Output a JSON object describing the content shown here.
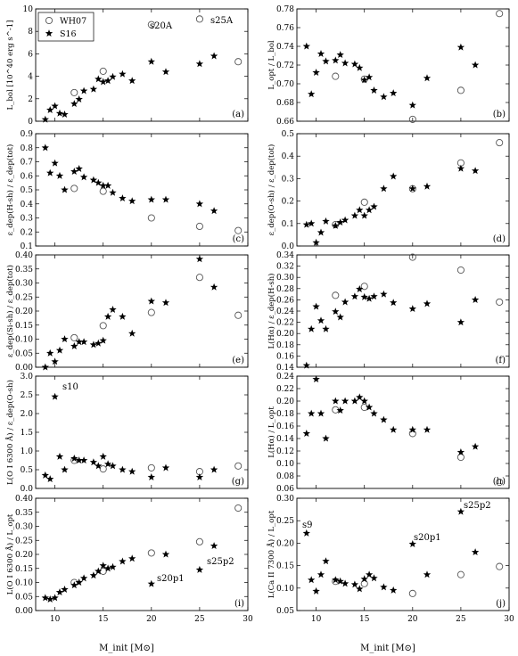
{
  "xaxis": {
    "range": [
      8,
      30
    ],
    "ticks": [
      10,
      15,
      20,
      25,
      30
    ],
    "label": "M_init [M⊙]"
  },
  "legend": {
    "entries": [
      {
        "name": "WH07",
        "marker": "circle"
      },
      {
        "name": "S16",
        "marker": "star"
      }
    ],
    "placement": "top-left of panel (a)"
  },
  "chart_data": [
    {
      "type": "scatter",
      "panel": "(a)",
      "ylabel": "L_bol [10^40 erg s^-1]",
      "ylim": [
        0,
        10
      ],
      "yticks": [
        0,
        2,
        4,
        6,
        8,
        10
      ],
      "series": [
        {
          "name": "WH07",
          "x": [
            12,
            15,
            20,
            25,
            29
          ],
          "y": [
            2.55,
            4.45,
            8.6,
            9.1,
            5.3
          ]
        },
        {
          "name": "S16",
          "x": [
            9,
            9.5,
            10,
            10.5,
            11,
            12,
            12.5,
            13,
            14,
            14.5,
            15,
            15.5,
            16,
            17,
            18,
            20,
            21.5,
            25,
            26.5
          ],
          "y": [
            0.15,
            1.0,
            1.35,
            0.7,
            0.6,
            1.55,
            1.95,
            2.7,
            2.85,
            3.75,
            3.5,
            3.6,
            3.95,
            4.2,
            3.6,
            5.3,
            4.4,
            5.1,
            5.8
          ]
        }
      ],
      "annotations": [
        {
          "text": "s20A"
        },
        {
          "text": "s25A"
        }
      ]
    },
    {
      "type": "scatter",
      "panel": "(b)",
      "ylabel": "L_opt / L_bol",
      "ylim": [
        0.66,
        0.78
      ],
      "yticks": [
        0.66,
        0.68,
        0.7,
        0.72,
        0.74,
        0.76,
        0.78
      ],
      "series": [
        {
          "name": "WH07",
          "x": [
            12,
            15,
            20,
            25,
            29
          ],
          "y": [
            0.708,
            0.705,
            0.662,
            0.693,
            0.775
          ]
        },
        {
          "name": "S16",
          "x": [
            9,
            9.5,
            10,
            10.5,
            11,
            12,
            12.5,
            13,
            14,
            14.5,
            15,
            15.5,
            16,
            17,
            18,
            20,
            21.5,
            25,
            26.5
          ],
          "y": [
            0.74,
            0.689,
            0.712,
            0.732,
            0.724,
            0.725,
            0.731,
            0.722,
            0.721,
            0.717,
            0.704,
            0.707,
            0.693,
            0.686,
            0.69,
            0.677,
            0.706,
            0.739,
            0.72
          ]
        }
      ]
    },
    {
      "type": "scatter",
      "panel": "(c)",
      "ylabel": "ε_dep(H-sh) / ε_dep(tot)",
      "ylim": [
        0.1,
        0.9
      ],
      "yticks": [
        0.1,
        0.2,
        0.3,
        0.4,
        0.5,
        0.6,
        0.7,
        0.8,
        0.9
      ],
      "series": [
        {
          "name": "WH07",
          "x": [
            12,
            15,
            20,
            25,
            29
          ],
          "y": [
            0.51,
            0.49,
            0.3,
            0.24,
            0.21
          ]
        },
        {
          "name": "S16",
          "x": [
            9,
            9.5,
            10,
            10.5,
            11,
            12,
            12.5,
            13,
            14,
            14.5,
            15,
            15.5,
            16,
            17,
            18,
            20,
            21.5,
            25,
            26.5
          ],
          "y": [
            0.8,
            0.62,
            0.69,
            0.6,
            0.5,
            0.63,
            0.65,
            0.59,
            0.57,
            0.55,
            0.53,
            0.53,
            0.48,
            0.44,
            0.42,
            0.43,
            0.43,
            0.4,
            0.35
          ]
        }
      ]
    },
    {
      "type": "scatter",
      "panel": "(d)",
      "ylabel": "ε_dep(O-sh) / ε_dep(tot)",
      "ylim": [
        0.0,
        0.5
      ],
      "yticks": [
        0.0,
        0.1,
        0.2,
        0.3,
        0.4,
        0.5
      ],
      "series": [
        {
          "name": "WH07",
          "x": [
            12,
            15,
            20,
            25,
            29
          ],
          "y": [
            0.095,
            0.195,
            0.255,
            0.37,
            0.46
          ]
        },
        {
          "name": "S16",
          "x": [
            9,
            9.5,
            10,
            10.5,
            11,
            12,
            12.5,
            13,
            14,
            14.5,
            15,
            15.5,
            16,
            17,
            18,
            20,
            21.5,
            25,
            26.5
          ],
          "y": [
            0.095,
            0.1,
            0.015,
            0.06,
            0.11,
            0.09,
            0.105,
            0.115,
            0.135,
            0.16,
            0.135,
            0.16,
            0.175,
            0.255,
            0.31,
            0.255,
            0.265,
            0.345,
            0.335
          ]
        }
      ]
    },
    {
      "type": "scatter",
      "panel": "(e)",
      "ylabel": "ε_dep(Si-sh) / ε_dep(tot)",
      "ylim": [
        0.0,
        0.4
      ],
      "yticks": [
        0.0,
        0.05,
        0.1,
        0.15,
        0.2,
        0.25,
        0.3,
        0.35,
        0.4
      ],
      "series": [
        {
          "name": "WH07",
          "x": [
            12,
            15,
            20,
            25,
            29
          ],
          "y": [
            0.105,
            0.148,
            0.195,
            0.32,
            0.185
          ]
        },
        {
          "name": "S16",
          "x": [
            9,
            9.5,
            10,
            10.5,
            11,
            12,
            12.5,
            13,
            14,
            14.5,
            15,
            15.5,
            16,
            17,
            18,
            20,
            21.5,
            25,
            26.5
          ],
          "y": [
            0.0,
            0.05,
            0.02,
            0.06,
            0.1,
            0.075,
            0.09,
            0.09,
            0.08,
            0.085,
            0.095,
            0.18,
            0.205,
            0.18,
            0.12,
            0.235,
            0.23,
            0.385,
            0.285
          ]
        }
      ]
    },
    {
      "type": "scatter",
      "panel": "(f)",
      "ylabel": "L(Hα) / ε_dep(H-sh)",
      "ylim": [
        0.14,
        0.34
      ],
      "yticks": [
        0.14,
        0.16,
        0.18,
        0.2,
        0.22,
        0.24,
        0.26,
        0.28,
        0.3,
        0.32,
        0.34
      ],
      "series": [
        {
          "name": "WH07",
          "x": [
            12,
            15,
            20,
            25,
            29
          ],
          "y": [
            0.268,
            0.284,
            0.336,
            0.313,
            0.256
          ]
        },
        {
          "name": "S16",
          "x": [
            9,
            9.5,
            10,
            10.5,
            11,
            12,
            12.5,
            13,
            14,
            14.5,
            15,
            15.5,
            16,
            17,
            18,
            20,
            21.5,
            25,
            26.5
          ],
          "y": [
            0.143,
            0.208,
            0.248,
            0.223,
            0.208,
            0.239,
            0.229,
            0.256,
            0.266,
            0.279,
            0.265,
            0.262,
            0.266,
            0.27,
            0.255,
            0.244,
            0.253,
            0.22,
            0.26
          ]
        }
      ]
    },
    {
      "type": "scatter",
      "panel": "(g)",
      "ylabel": "L(O I 6300 Å) / ε_dep(O-sh)",
      "ylim": [
        0.0,
        3.0
      ],
      "yticks": [
        0.0,
        0.5,
        1.0,
        1.5,
        2.0,
        2.5,
        3.0
      ],
      "series": [
        {
          "name": "WH07",
          "x": [
            12,
            15,
            20,
            25,
            29
          ],
          "y": [
            0.75,
            0.52,
            0.55,
            0.45,
            0.6
          ]
        },
        {
          "name": "S16",
          "x": [
            9,
            9.5,
            10,
            10.5,
            11,
            12,
            12.5,
            13,
            14,
            14.5,
            15,
            15.5,
            16,
            17,
            18,
            20,
            21.5,
            25,
            26.5
          ],
          "y": [
            0.35,
            0.25,
            2.45,
            0.85,
            0.5,
            0.8,
            0.75,
            0.75,
            0.7,
            0.6,
            0.85,
            0.65,
            0.6,
            0.5,
            0.45,
            0.3,
            0.55,
            0.3,
            0.5
          ]
        }
      ],
      "annotations": [
        {
          "text": "s10"
        }
      ]
    },
    {
      "type": "scatter",
      "panel": "(h)",
      "ylabel": "L(Hα) / L_opt",
      "ylim": [
        0.06,
        0.24
      ],
      "yticks": [
        0.06,
        0.08,
        0.1,
        0.12,
        0.14,
        0.16,
        0.18,
        0.2,
        0.22,
        0.24
      ],
      "series": [
        {
          "name": "WH07",
          "x": [
            12,
            15,
            20,
            25,
            29
          ],
          "y": [
            0.186,
            0.19,
            0.148,
            0.11,
            0.07
          ]
        },
        {
          "name": "S16",
          "x": [
            9,
            9.5,
            10,
            10.5,
            11,
            12,
            12.5,
            13,
            14,
            14.5,
            15,
            15.5,
            16,
            17,
            18,
            20,
            21.5,
            25,
            26.5
          ],
          "y": [
            0.148,
            0.18,
            0.235,
            0.18,
            0.14,
            0.2,
            0.185,
            0.2,
            0.2,
            0.206,
            0.2,
            0.19,
            0.18,
            0.17,
            0.154,
            0.154,
            0.154,
            0.118,
            0.127
          ]
        }
      ]
    },
    {
      "type": "scatter",
      "panel": "(i)",
      "ylabel": "L(O I 6300 Å) / L_opt",
      "ylim": [
        0.0,
        0.4
      ],
      "yticks": [
        0.0,
        0.05,
        0.1,
        0.15,
        0.2,
        0.25,
        0.3,
        0.35,
        0.4
      ],
      "series": [
        {
          "name": "WH07",
          "x": [
            12,
            15,
            20,
            25,
            29
          ],
          "y": [
            0.1,
            0.14,
            0.205,
            0.245,
            0.365
          ]
        },
        {
          "name": "S16",
          "x": [
            9,
            9.5,
            10,
            10.5,
            11,
            12,
            12.5,
            13,
            14,
            14.5,
            15,
            15.5,
            16,
            17,
            18,
            20,
            21.5,
            25,
            26.5
          ],
          "y": [
            0.045,
            0.04,
            0.045,
            0.065,
            0.075,
            0.09,
            0.1,
            0.115,
            0.125,
            0.14,
            0.16,
            0.15,
            0.155,
            0.175,
            0.185,
            0.095,
            0.2,
            0.145,
            0.23
          ]
        }
      ],
      "annotations": [
        {
          "text": "s20p1"
        },
        {
          "text": "s25p2"
        }
      ]
    },
    {
      "type": "scatter",
      "panel": "(j)",
      "ylabel": "L(Ca II 7300 Å) / L_opt",
      "ylim": [
        0.05,
        0.3
      ],
      "yticks": [
        0.05,
        0.1,
        0.15,
        0.2,
        0.25,
        0.3
      ],
      "series": [
        {
          "name": "WH07",
          "x": [
            12,
            15,
            20,
            25,
            29
          ],
          "y": [
            0.115,
            0.11,
            0.088,
            0.13,
            0.148
          ]
        },
        {
          "name": "S16",
          "x": [
            9,
            9.5,
            10,
            10.5,
            11,
            12,
            12.5,
            13,
            14,
            14.5,
            15,
            15.5,
            16,
            17,
            18,
            20,
            21.5,
            25,
            26.5
          ],
          "y": [
            0.222,
            0.118,
            0.093,
            0.13,
            0.16,
            0.118,
            0.115,
            0.11,
            0.108,
            0.098,
            0.12,
            0.13,
            0.122,
            0.102,
            0.095,
            0.198,
            0.13,
            0.27,
            0.18
          ]
        }
      ],
      "annotations": [
        {
          "text": "s9"
        },
        {
          "text": "s20p1"
        },
        {
          "text": "s25p2"
        }
      ]
    }
  ]
}
